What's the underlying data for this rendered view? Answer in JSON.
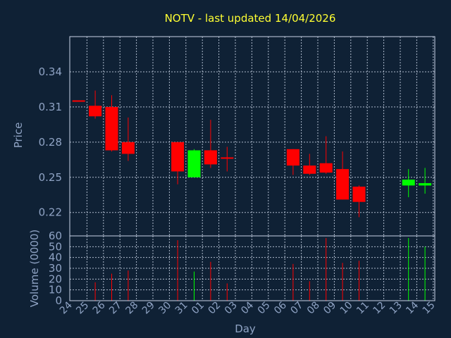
{
  "chart_data": {
    "type": "candlestick",
    "title": "NOTV - last updated 14/04/2026",
    "ylabel_price": "Price",
    "ylabel_volume": "Volume (0000)",
    "xlabel": "Day",
    "price_ylim": [
      0.2,
      0.37
    ],
    "price_ticks": [
      "0.22",
      "0.25",
      "0.28",
      "0.31",
      "0.34"
    ],
    "volume_ylim": [
      0,
      60
    ],
    "volume_ticks": [
      "0",
      "10",
      "20",
      "30",
      "40",
      "50",
      "60"
    ],
    "x_ticks": [
      "24",
      "25",
      "26",
      "27",
      "28",
      "29",
      "30",
      "31",
      "01",
      "02",
      "03",
      "04",
      "05",
      "06",
      "07",
      "08",
      "09",
      "10",
      "11",
      "12",
      "13",
      "14",
      "15"
    ],
    "grid": true,
    "colors": {
      "up": "#00ff00",
      "down": "#ff0000",
      "background": "#0f2135",
      "title": "#ffff33",
      "axis_text": "#8fa3c4"
    },
    "candles": [
      {
        "day": "24",
        "open": 0.315,
        "high": 0.315,
        "low": 0.315,
        "close": 0.315,
        "volume": 0
      },
      {
        "day": "25",
        "open": 0.311,
        "high": 0.324,
        "low": 0.3,
        "close": 0.302,
        "volume": 17
      },
      {
        "day": "26",
        "open": 0.31,
        "high": 0.32,
        "low": 0.272,
        "close": 0.273,
        "volume": 25
      },
      {
        "day": "27",
        "open": 0.28,
        "high": 0.301,
        "low": 0.264,
        "close": 0.27,
        "volume": 28
      },
      {
        "day": "30",
        "open": 0.28,
        "high": 0.28,
        "low": 0.244,
        "close": 0.255,
        "volume": 56
      },
      {
        "day": "31",
        "open": 0.25,
        "high": 0.274,
        "low": 0.25,
        "close": 0.273,
        "volume": 27
      },
      {
        "day": "01",
        "open": 0.273,
        "high": 0.299,
        "low": 0.258,
        "close": 0.261,
        "volume": 36
      },
      {
        "day": "02",
        "open": 0.267,
        "high": 0.276,
        "low": 0.255,
        "close": 0.266,
        "volume": 16
      },
      {
        "day": "06",
        "open": 0.274,
        "high": 0.274,
        "low": 0.252,
        "close": 0.26,
        "volume": 34
      },
      {
        "day": "07",
        "open": 0.26,
        "high": 0.27,
        "low": 0.252,
        "close": 0.253,
        "volume": 18
      },
      {
        "day": "08",
        "open": 0.262,
        "high": 0.285,
        "low": 0.253,
        "close": 0.254,
        "volume": 58
      },
      {
        "day": "09",
        "open": 0.257,
        "high": 0.272,
        "low": 0.231,
        "close": 0.231,
        "volume": 35
      },
      {
        "day": "10",
        "open": 0.242,
        "high": 0.243,
        "low": 0.216,
        "close": 0.229,
        "volume": 37
      },
      {
        "day": "13",
        "open": 0.243,
        "high": 0.257,
        "low": 0.233,
        "close": 0.248,
        "volume": 58
      },
      {
        "day": "14",
        "open": 0.243,
        "high": 0.258,
        "low": 0.236,
        "close": 0.245,
        "volume": 50
      }
    ]
  }
}
